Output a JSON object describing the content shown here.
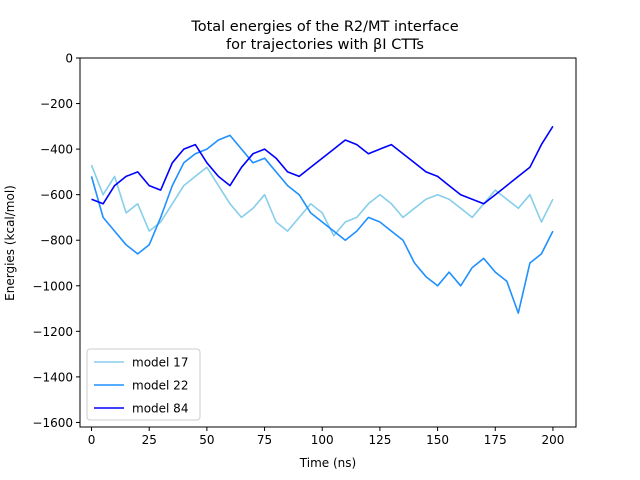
{
  "chart_data": {
    "type": "line",
    "title_lines": [
      "Total energies of the R2/MT interface",
      "for trajectories with βI CTTs"
    ],
    "xlabel": "Time (ns)",
    "ylabel": "Energies (kcal/mol)",
    "xlim": [
      -5,
      210
    ],
    "ylim": [
      -1620,
      0
    ],
    "xticks": [
      0,
      25,
      50,
      75,
      100,
      125,
      150,
      175,
      200
    ],
    "yticks": [
      0,
      -200,
      -400,
      -600,
      -800,
      -1000,
      -1200,
      -1400,
      -1600
    ],
    "xtick_labels": [
      "0",
      "25",
      "50",
      "75",
      "100",
      "125",
      "150",
      "175",
      "200"
    ],
    "ytick_labels": [
      "0",
      "−200",
      "−400",
      "−600",
      "−800",
      "−1000",
      "−1200",
      "−1400",
      "−1600"
    ],
    "grid": false,
    "legend_position": "lower-left",
    "series": [
      {
        "name": "model 17",
        "color": "#87ceeb",
        "x": [
          0,
          5,
          10,
          15,
          20,
          25,
          30,
          35,
          40,
          45,
          50,
          55,
          60,
          65,
          70,
          75,
          80,
          85,
          90,
          95,
          100,
          105,
          110,
          115,
          120,
          125,
          130,
          135,
          140,
          145,
          150,
          155,
          160,
          165,
          170,
          175,
          180,
          185,
          190,
          195,
          200
        ],
        "values": [
          -470,
          -600,
          -520,
          -680,
          -640,
          -760,
          -720,
          -640,
          -560,
          -520,
          -480,
          -560,
          -640,
          -700,
          -660,
          -600,
          -720,
          -760,
          -700,
          -640,
          -680,
          -780,
          -720,
          -700,
          -640,
          -600,
          -640,
          -700,
          -660,
          -620,
          -600,
          -620,
          -660,
          -700,
          -640,
          -580,
          -620,
          -660,
          -600,
          -720,
          -620
        ]
      },
      {
        "name": "model 22",
        "color": "#1e90ff",
        "x": [
          0,
          5,
          10,
          15,
          20,
          25,
          30,
          35,
          40,
          45,
          50,
          55,
          60,
          65,
          70,
          75,
          80,
          85,
          90,
          95,
          100,
          105,
          110,
          115,
          120,
          125,
          130,
          135,
          140,
          145,
          150,
          155,
          160,
          165,
          170,
          175,
          180,
          185,
          190,
          195,
          200
        ],
        "values": [
          -520,
          -700,
          -760,
          -820,
          -860,
          -820,
          -700,
          -560,
          -460,
          -420,
          -400,
          -360,
          -340,
          -400,
          -460,
          -440,
          -500,
          -560,
          -600,
          -680,
          -720,
          -760,
          -800,
          -760,
          -700,
          -720,
          -760,
          -800,
          -900,
          -960,
          -1000,
          -940,
          -1000,
          -920,
          -880,
          -940,
          -980,
          -1120,
          -900,
          -860,
          -760
        ]
      },
      {
        "name": "model 84",
        "color": "#0000ff",
        "x": [
          0,
          5,
          10,
          15,
          20,
          25,
          30,
          35,
          40,
          45,
          50,
          55,
          60,
          65,
          70,
          75,
          80,
          85,
          90,
          95,
          100,
          105,
          110,
          115,
          120,
          125,
          130,
          135,
          140,
          145,
          150,
          155,
          160,
          165,
          170,
          175,
          180,
          185,
          190,
          195,
          200
        ],
        "values": [
          -620,
          -640,
          -560,
          -520,
          -500,
          -560,
          -580,
          -460,
          -400,
          -380,
          -460,
          -520,
          -560,
          -480,
          -420,
          -400,
          -440,
          -500,
          -520,
          -480,
          -440,
          -400,
          -360,
          -380,
          -420,
          -400,
          -380,
          -420,
          -460,
          -500,
          -520,
          -560,
          -600,
          -620,
          -640,
          -600,
          -560,
          -520,
          -480,
          -380,
          -300
        ]
      }
    ]
  }
}
